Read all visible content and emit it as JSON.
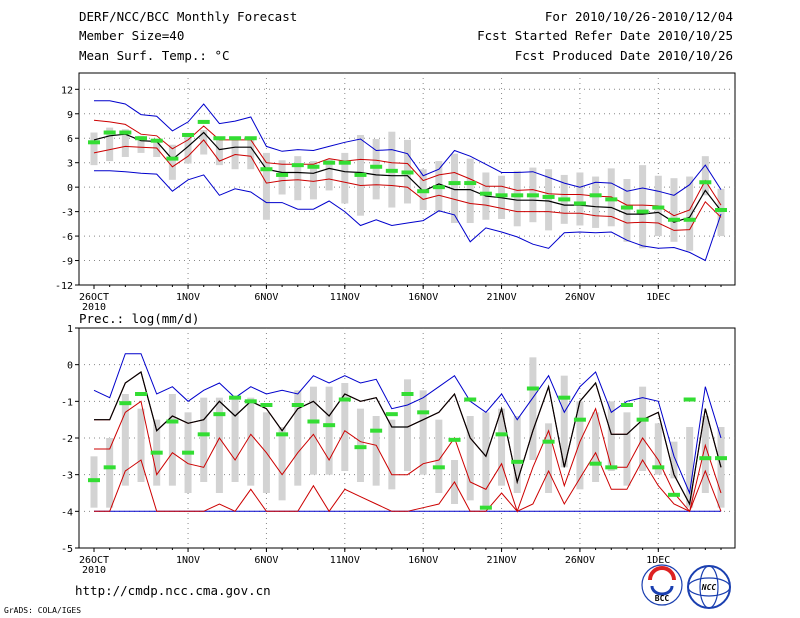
{
  "header": {
    "left": [
      "DERF/NCC/BCC Monthly Forecast",
      "Member Size=40",
      "Mean Surf. Temp.: °C"
    ],
    "right": [
      "For 2010/10/26-2010/12/04",
      "Fcst Started Refer Date 2010/10/25",
      "Fcst Produced Date 2010/10/26"
    ]
  },
  "prec_label": "Prec.: log(mm/d)",
  "footer": {
    "url": "http://cmdp.ncc.cma.gov.cn",
    "grads": "GrADS: COLA/IGES",
    "logo1": "BCC",
    "logo2": "NCC"
  },
  "colors": {
    "envelope": "#0000cc",
    "quartile": "#cc0000",
    "median": "#000000",
    "obs": "#33dd33",
    "box": "#d3d3d3",
    "grid": "#888888"
  },
  "chart_data": [
    {
      "type": "line",
      "title": "Mean Surf. Temp.: °C",
      "x_ticks": [
        {
          "day": 0,
          "label": "26OCT"
        },
        {
          "day": 6,
          "label": "1NOV"
        },
        {
          "day": 11,
          "label": "6NOV"
        },
        {
          "day": 16,
          "label": "11NOV"
        },
        {
          "day": 21,
          "label": "16NOV"
        },
        {
          "day": 26,
          "label": "21NOV"
        },
        {
          "day": 31,
          "label": "26NOV"
        },
        {
          "day": 36,
          "label": "1DEC"
        }
      ],
      "x_sublabel": "2010",
      "ylim": [
        -12,
        14
      ],
      "y_ticks": [
        -12,
        -9,
        -6,
        -3,
        0,
        3,
        6,
        9,
        12
      ],
      "series": [
        {
          "name": "ens_max",
          "values": [
            10.6,
            10.6,
            10.2,
            8.9,
            8.7,
            6.9,
            8.0,
            10.2,
            7.8,
            8.1,
            8.6,
            5.0,
            4.4,
            4.6,
            4.5,
            5.0,
            5.5,
            5.9,
            4.5,
            4.6,
            4.1,
            1.4,
            2.2,
            4.5,
            3.8,
            2.8,
            1.8,
            1.8,
            1.9,
            1.2,
            0.5,
            0.0,
            0.6,
            0.5,
            -0.5,
            -0.1,
            -0.5,
            -1.0,
            0.3,
            2.7,
            -0.3
          ]
        },
        {
          "name": "ens_min",
          "values": [
            2.0,
            2.0,
            1.9,
            1.7,
            1.6,
            -0.5,
            0.9,
            1.5,
            -1.0,
            -0.2,
            -0.6,
            -1.9,
            -1.9,
            -2.7,
            -2.7,
            -1.7,
            -3.0,
            -4.7,
            -4.0,
            -4.7,
            -4.4,
            -4.1,
            -2.9,
            -3.4,
            -6.7,
            -5.0,
            -5.5,
            -6.1,
            -7.0,
            -7.5,
            -5.6,
            -5.5,
            -5.6,
            -5.5,
            -6.5,
            -7.2,
            -7.5,
            -7.4,
            -8.0,
            -9.0,
            -3.3
          ]
        },
        {
          "name": "upper_quartile",
          "values": [
            8.2,
            8.0,
            7.7,
            6.5,
            6.3,
            4.7,
            5.8,
            7.5,
            5.8,
            5.8,
            5.8,
            3.0,
            2.8,
            2.8,
            2.8,
            3.5,
            3.2,
            3.4,
            3.3,
            3.0,
            2.9,
            0.8,
            1.5,
            1.8,
            1.0,
            0.1,
            0.1,
            -0.4,
            -0.3,
            -0.8,
            -0.9,
            -0.9,
            -1.1,
            -1.2,
            -2.2,
            -2.2,
            -2.3,
            -3.5,
            -2.8,
            0.8,
            -2.2
          ]
        },
        {
          "name": "median",
          "values": [
            5.8,
            6.3,
            6.5,
            5.7,
            5.6,
            3.4,
            5.0,
            6.7,
            4.6,
            4.9,
            4.9,
            2.2,
            1.8,
            1.8,
            1.7,
            2.3,
            1.9,
            1.8,
            1.5,
            1.4,
            1.4,
            -0.5,
            0.4,
            -0.3,
            -0.3,
            -1.1,
            -1.3,
            -1.6,
            -1.6,
            -1.7,
            -2.2,
            -2.2,
            -2.4,
            -2.5,
            -3.3,
            -3.3,
            -3.1,
            -4.3,
            -3.7,
            -0.4,
            -2.9
          ]
        },
        {
          "name": "lower_quartile",
          "values": [
            4.2,
            4.6,
            5.0,
            4.9,
            4.8,
            2.5,
            3.8,
            5.8,
            3.2,
            4.0,
            3.8,
            0.5,
            0.8,
            0.9,
            0.7,
            1.0,
            0.6,
            0.2,
            0.3,
            0.2,
            0.0,
            -1.5,
            -1.0,
            -1.5,
            -2.0,
            -2.2,
            -2.6,
            -3.0,
            -3.0,
            -3.0,
            -3.2,
            -3.2,
            -3.5,
            -3.6,
            -4.4,
            -4.3,
            -4.4,
            -5.3,
            -5.2,
            -1.8,
            -3.7
          ]
        },
        {
          "name": "obs",
          "values": [
            5.5,
            6.7,
            6.7,
            6.0,
            5.7,
            3.5,
            6.4,
            8.0,
            6.0,
            6.0,
            6.0,
            2.2,
            1.5,
            2.7,
            2.5,
            3.0,
            3.0,
            1.5,
            2.5,
            2.0,
            1.8,
            -0.5,
            0.0,
            0.5,
            0.5,
            -0.8,
            -1.0,
            -1.0,
            -1.0,
            -1.2,
            -1.5,
            -2.0,
            -1.0,
            -1.5,
            -2.5,
            -3.0,
            -2.5,
            -4.0,
            -4.0,
            0.6,
            -2.8
          ]
        },
        {
          "name": "box_top",
          "values": [
            6.7,
            7.3,
            7.1,
            6.3,
            5.9,
            5.2,
            6.4,
            7.0,
            6.1,
            6.1,
            5.9,
            4.2,
            3.3,
            3.8,
            3.2,
            3.4,
            4.2,
            6.4,
            5.9,
            6.8,
            5.8,
            2.2,
            3.2,
            4.1,
            3.5,
            1.8,
            1.4,
            2.0,
            2.4,
            2.2,
            1.5,
            1.8,
            1.3,
            2.3,
            1.0,
            2.7,
            1.4,
            1.1,
            1.3,
            3.8,
            -0.2
          ]
        },
        {
          "name": "box_bottom",
          "values": [
            2.7,
            3.2,
            3.7,
            4.2,
            3.7,
            0.9,
            2.9,
            4.0,
            2.7,
            2.2,
            2.2,
            -4.0,
            -0.9,
            -1.6,
            -1.5,
            -0.4,
            -2.0,
            -3.5,
            -1.5,
            -2.5,
            -2.0,
            -2.8,
            -3.0,
            -4.4,
            -4.4,
            -4.0,
            -3.9,
            -4.8,
            -4.3,
            -5.3,
            -4.5,
            -4.7,
            -5.0,
            -4.8,
            -6.7,
            -7.5,
            -6.0,
            -6.7,
            -7.8,
            -1.0,
            -6.0
          ]
        }
      ]
    },
    {
      "type": "line",
      "title": "Prec.: log(mm/d)",
      "x_ticks": [
        {
          "day": 0,
          "label": "26OCT"
        },
        {
          "day": 6,
          "label": "1NOV"
        },
        {
          "day": 11,
          "label": "6NOV"
        },
        {
          "day": 16,
          "label": "11NOV"
        },
        {
          "day": 21,
          "label": "16NOV"
        },
        {
          "day": 26,
          "label": "21NOV"
        },
        {
          "day": 31,
          "label": "26NOV"
        },
        {
          "day": 36,
          "label": "1DEC"
        }
      ],
      "x_sublabel": "2010",
      "ylim": [
        -5,
        1
      ],
      "y_ticks": [
        -5,
        -4,
        -3,
        -2,
        -1,
        0,
        1
      ],
      "series": [
        {
          "name": "ens_max",
          "values": [
            -0.7,
            -0.9,
            0.3,
            0.3,
            -0.8,
            -0.6,
            -1.0,
            -0.7,
            -0.5,
            -0.9,
            -0.6,
            -0.8,
            -0.7,
            -0.8,
            -0.3,
            -0.5,
            -0.3,
            -0.5,
            -0.4,
            -1.2,
            -1.1,
            -0.9,
            -0.6,
            -0.3,
            -1.0,
            -1.3,
            -0.8,
            -1.5,
            -0.9,
            -0.3,
            -1.3,
            -0.6,
            -0.2,
            -1.3,
            -1.0,
            -0.9,
            -1.0,
            -2.5,
            -3.5,
            -0.6,
            -2.0
          ]
        },
        {
          "name": "upper_quartile",
          "values": [
            -1.5,
            -1.5,
            -0.5,
            -0.2,
            -1.8,
            -1.4,
            -1.6,
            -1.5,
            -1.0,
            -1.4,
            -1.0,
            -1.2,
            -1.8,
            -1.2,
            -1.0,
            -1.4,
            -0.8,
            -1.0,
            -0.9,
            -1.7,
            -1.7,
            -1.5,
            -1.3,
            -0.8,
            -2.0,
            -2.5,
            -1.2,
            -3.2,
            -1.8,
            -0.6,
            -2.8,
            -1.0,
            -0.5,
            -1.9,
            -1.9,
            -1.5,
            -1.3,
            -3.0,
            -3.8,
            -1.2,
            -2.8
          ]
        },
        {
          "name": "median",
          "values": [
            -1.5,
            -1.5,
            -0.5,
            -0.2,
            -1.8,
            -1.4,
            -1.6,
            -1.5,
            -1.0,
            -1.4,
            -1.0,
            -1.2,
            -1.8,
            -1.2,
            -1.0,
            -1.4,
            -0.8,
            -1.0,
            -0.9,
            -1.7,
            -1.7,
            -1.5,
            -1.3,
            -0.8,
            -2.0,
            -2.5,
            -1.2,
            -3.2,
            -1.8,
            -0.6,
            -2.8,
            -1.0,
            -0.5,
            -1.9,
            -1.9,
            -1.5,
            -1.3,
            -3.0,
            -3.8,
            -1.2,
            -2.8
          ]
        },
        {
          "name": "lower_quartile",
          "values": [
            -2.3,
            -2.3,
            -1.3,
            -1.0,
            -3.0,
            -2.4,
            -2.7,
            -2.8,
            -2.0,
            -2.6,
            -1.9,
            -2.4,
            -3.0,
            -2.4,
            -1.9,
            -2.6,
            -1.8,
            -2.1,
            -2.2,
            -3.0,
            -3.0,
            -2.7,
            -2.6,
            -2.0,
            -3.2,
            -3.4,
            -2.7,
            -4.0,
            -2.8,
            -1.8,
            -3.3,
            -2.1,
            -1.2,
            -2.8,
            -2.8,
            -2.0,
            -2.6,
            -3.5,
            -4.0,
            -2.2,
            -3.5
          ]
        },
        {
          "name": "lower_quartile_2",
          "values": [
            -4.0,
            -4.0,
            -2.9,
            -2.6,
            -4.0,
            -4.0,
            -4.0,
            -4.0,
            -3.8,
            -4.0,
            -3.4,
            -4.0,
            -4.0,
            -4.0,
            -3.3,
            -4.0,
            -3.4,
            -3.6,
            -3.8,
            -4.0,
            -4.0,
            -3.9,
            -3.8,
            -3.2,
            -4.0,
            -4.0,
            -3.5,
            -4.0,
            -3.8,
            -2.9,
            -3.8,
            -3.1,
            -2.4,
            -3.4,
            -3.4,
            -2.6,
            -3.3,
            -3.8,
            -4.0,
            -2.9,
            -4.0
          ]
        },
        {
          "name": "ens_min",
          "values": [
            -4.0,
            -4.0,
            -4.0,
            -4.0,
            -4.0,
            -4.0,
            -4.0,
            -4.0,
            -4.0,
            -4.0,
            -4.0,
            -4.0,
            -4.0,
            -4.0,
            -4.0,
            -4.0,
            -4.0,
            -4.0,
            -4.0,
            -4.0,
            -4.0,
            -4.0,
            -4.0,
            -4.0,
            -4.0,
            -4.0,
            -4.0,
            -4.0,
            -4.0,
            -4.0,
            -4.0,
            -4.0,
            -4.0,
            -4.0,
            -4.0,
            -4.0,
            -4.0,
            -4.0,
            -4.0,
            -4.0,
            -4.0
          ]
        },
        {
          "name": "obs",
          "values": [
            -3.15,
            -2.8,
            -1.05,
            -0.8,
            -2.4,
            -1.55,
            -2.4,
            -1.9,
            -1.35,
            -0.9,
            -1.0,
            -1.1,
            -1.9,
            -1.1,
            -1.55,
            -1.65,
            -0.95,
            -2.25,
            -1.8,
            -1.35,
            -0.8,
            -1.3,
            -2.8,
            -2.05,
            -0.95,
            -3.9,
            -1.9,
            -2.65,
            -0.65,
            -2.1,
            -0.9,
            -1.5,
            -2.7,
            -2.8,
            -1.1,
            -1.5,
            -2.8,
            -3.55,
            -0.95,
            -2.55,
            -2.55
          ]
        },
        {
          "name": "box_top",
          "values": [
            -2.5,
            -2.0,
            -0.8,
            -1.2,
            -1.5,
            -0.8,
            -1.3,
            -0.9,
            -0.9,
            -0.9,
            -0.9,
            -1.3,
            -1.7,
            -0.7,
            -0.6,
            -0.6,
            -0.5,
            -1.2,
            -1.4,
            -1.5,
            -0.4,
            -0.7,
            -1.5,
            -2.6,
            -1.4,
            -1.3,
            -1.2,
            -1.4,
            0.2,
            -1.6,
            -0.3,
            -1.0,
            -1.3,
            -1.0,
            -1.3,
            -0.6,
            -1.6,
            -2.1,
            -1.7,
            -1.4,
            -1.7
          ]
        },
        {
          "name": "box_bottom",
          "values": [
            -3.9,
            -3.9,
            -3.3,
            -3.2,
            -3.3,
            -3.3,
            -3.5,
            -3.2,
            -3.5,
            -3.2,
            -3.3,
            -3.5,
            -3.7,
            -3.3,
            -3.0,
            -3.0,
            -2.9,
            -3.2,
            -3.3,
            -3.4,
            -2.9,
            -3.0,
            -3.5,
            -3.8,
            -3.7,
            -3.9,
            -3.3,
            -3.5,
            -2.6,
            -3.5,
            -2.8,
            -3.4,
            -3.2,
            -2.9,
            -3.3,
            -2.9,
            -3.0,
            -3.1,
            -3.9,
            -3.5,
            -3.9
          ]
        }
      ]
    }
  ]
}
